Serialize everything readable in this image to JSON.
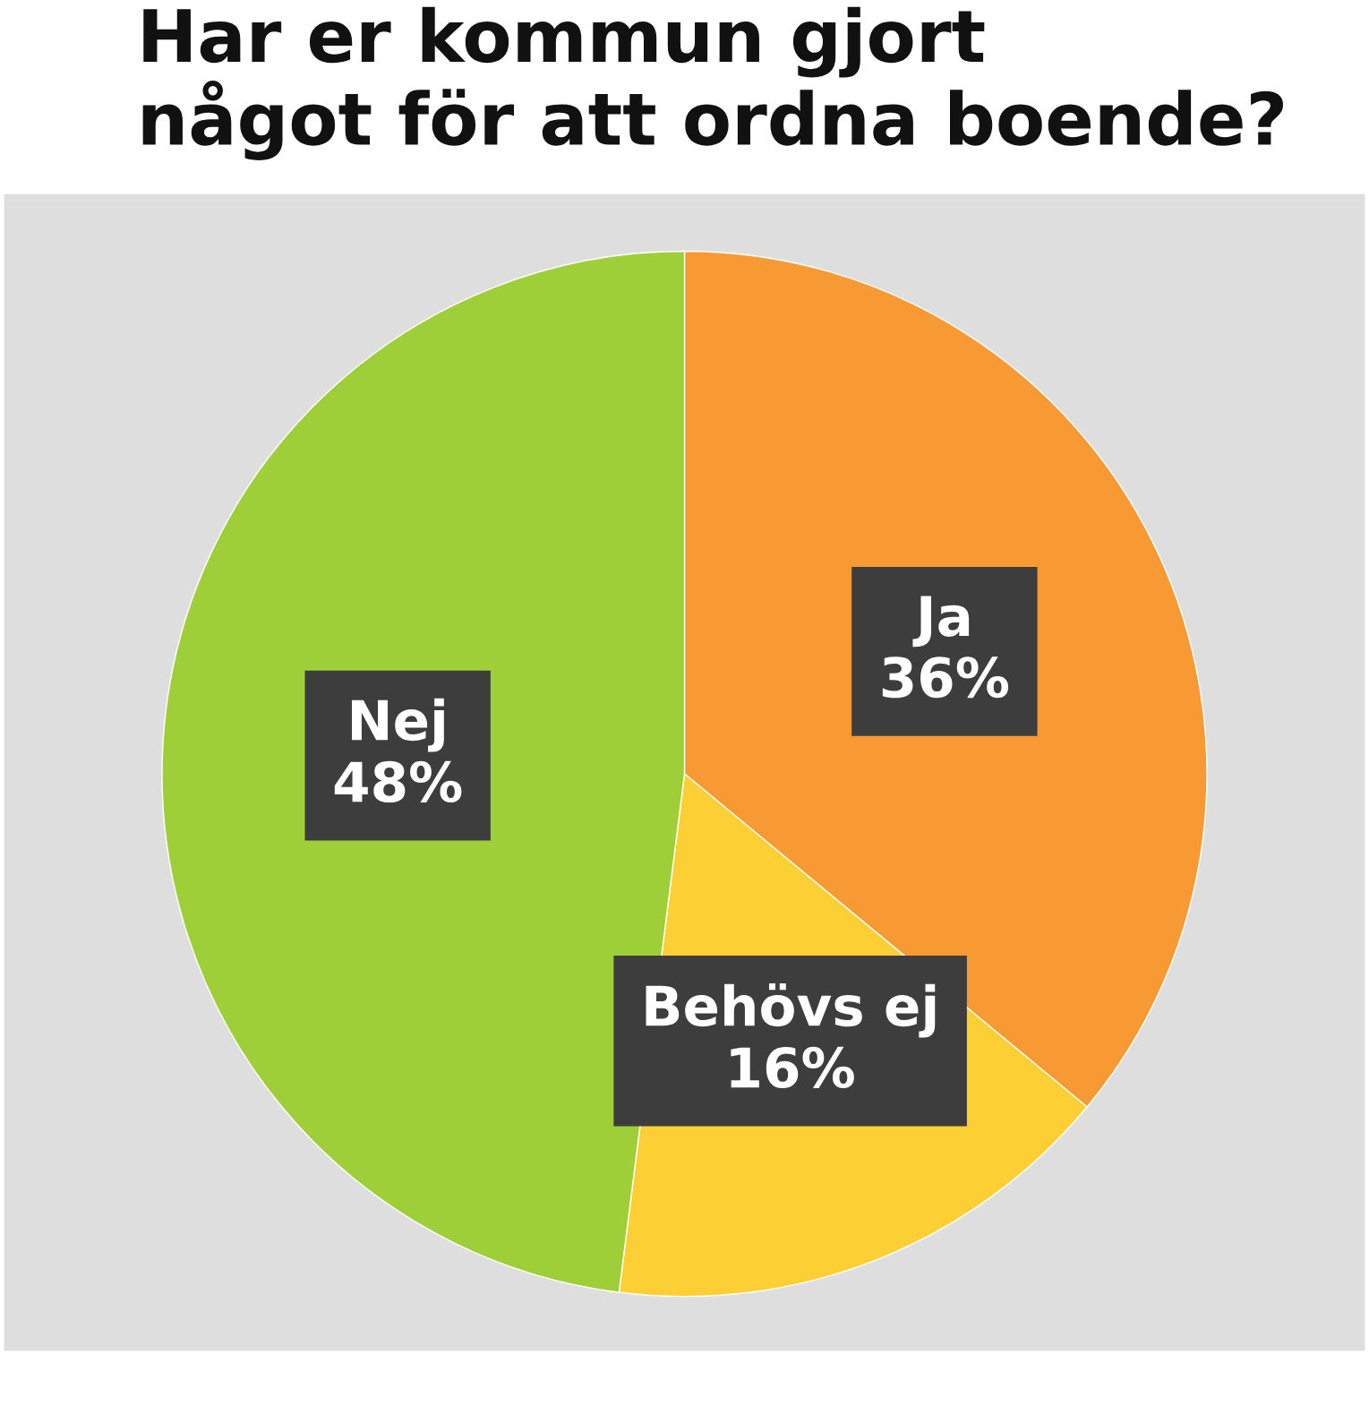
{
  "chart_data": {
    "type": "pie",
    "title": "Har er kommun gjort\nnågot för att ordna boende?",
    "categories": [
      "Ja",
      "Behövs ej",
      "Nej"
    ],
    "values": [
      36,
      16,
      48
    ],
    "value_labels": [
      "36%",
      "16%",
      "48%"
    ],
    "colors": [
      "#f89a33",
      "#fcd035",
      "#9fcf38"
    ]
  }
}
